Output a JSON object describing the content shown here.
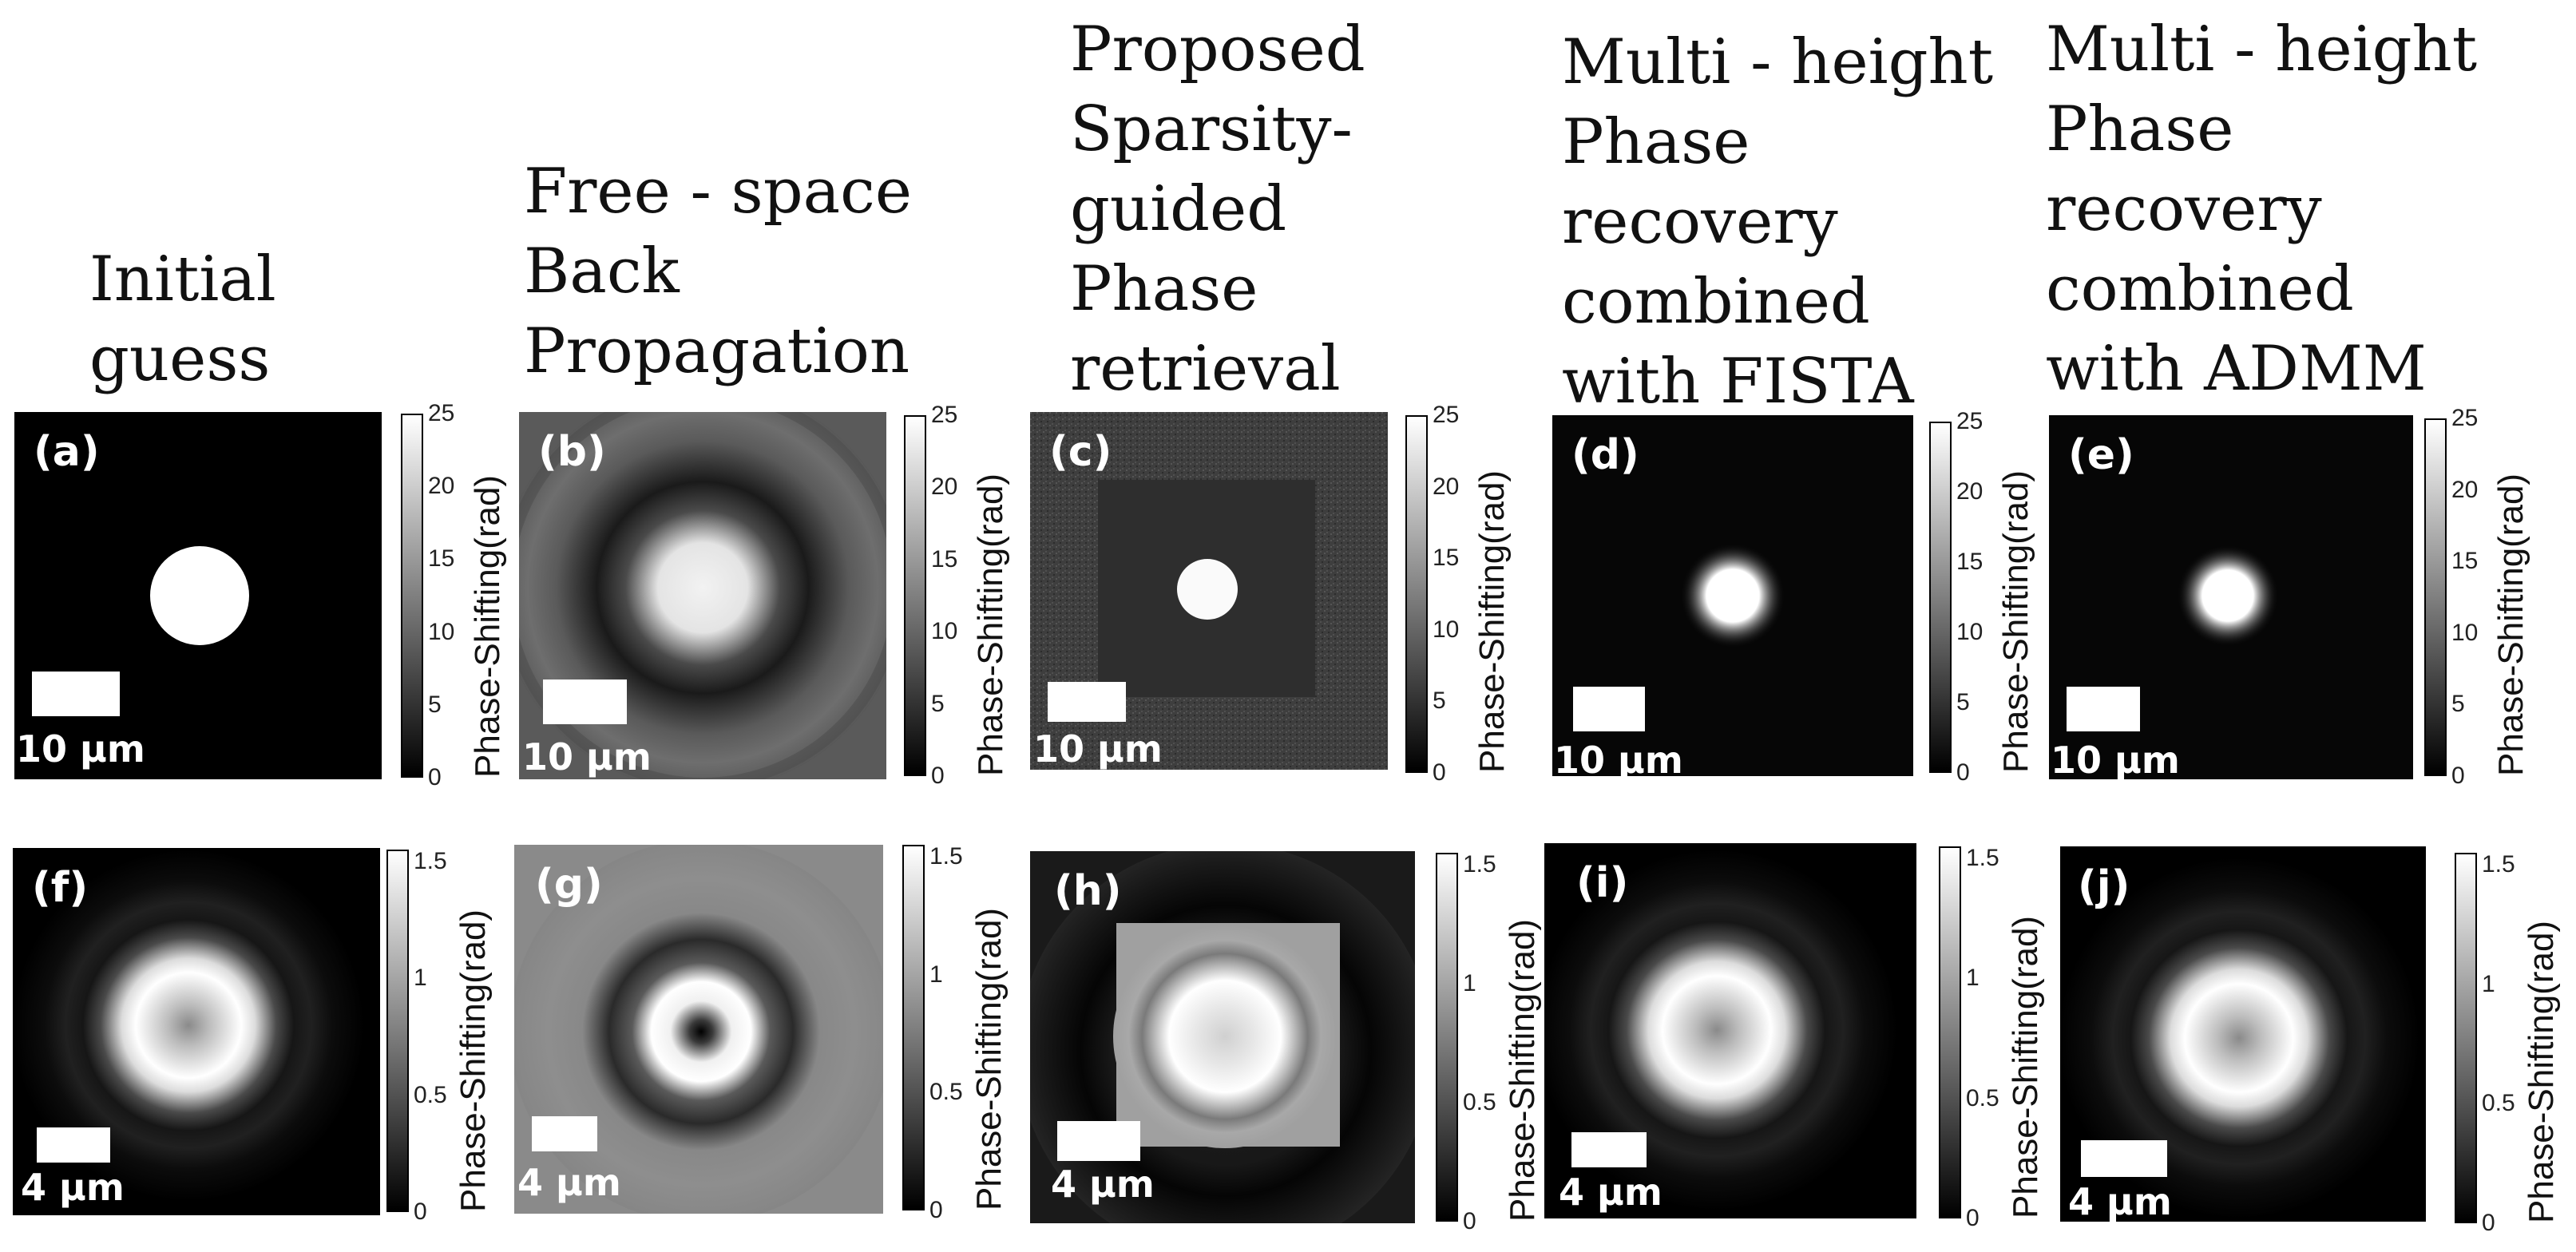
{
  "columns": [
    {
      "title_lines": [
        "Initial",
        "guess"
      ]
    },
    {
      "title_lines": [
        "Free - space",
        "Back",
        "Propagation"
      ]
    },
    {
      "title_lines": [
        "Proposed",
        "Sparsity-",
        "guided",
        "Phase",
        "retrieval"
      ]
    },
    {
      "title_lines": [
        "Multi - height",
        "Phase",
        "recovery",
        "combined",
        "with FISTA"
      ]
    },
    {
      "title_lines": [
        "Multi - height",
        "Phase",
        "recovery",
        "combined",
        "with ADMM"
      ]
    }
  ],
  "colorbar_title": "Phase-Shifting(rad)",
  "rows": [
    {
      "scale_text": "10 μm",
      "colorbar_ticks": [
        "25",
        "20",
        "15",
        "10",
        "5",
        "0"
      ],
      "colorbar_max": 25,
      "tick_values": [
        25,
        20,
        15,
        10,
        5,
        0
      ],
      "panel_labels": [
        "(a)",
        "(b)",
        "(c)",
        "(d)",
        "(e)"
      ]
    },
    {
      "scale_text": "4 μm",
      "colorbar_ticks": [
        "1.5",
        "1",
        "0.5",
        "0"
      ],
      "colorbar_max": 1.55,
      "tick_values": [
        1.5,
        1,
        0.5,
        0
      ],
      "panel_labels": [
        "(f)",
        "(g)",
        "(h)",
        "(i)",
        "(j)"
      ]
    }
  ],
  "colors": {
    "image_black": "#000000",
    "foreground": "#ffffff",
    "text": "#111111"
  }
}
